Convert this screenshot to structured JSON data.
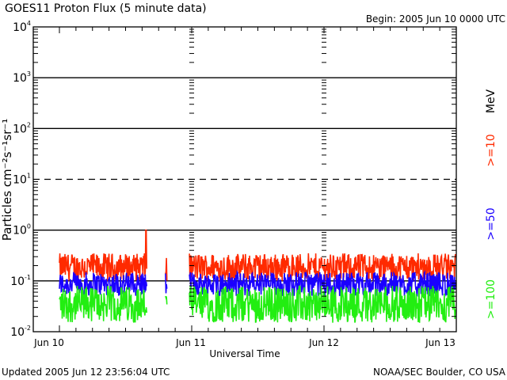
{
  "chart_data": {
    "type": "line",
    "title": "GOES11 Proton Flux (5 minute data)",
    "subtitle": "Begin: 2005 Jun 10 0000 UTC",
    "xlabel": "Universal Time",
    "ylabel": "Particles cm⁻²s⁻¹sr⁻¹",
    "yscale": "log",
    "ylim": [
      0.01,
      10000
    ],
    "xlim_days": [
      0,
      3
    ],
    "x_ticks": [
      "Jun 10",
      "Jun 11",
      "Jun 12",
      "Jun 13"
    ],
    "y_ticks": [
      {
        "value": 10000,
        "base": "10",
        "exp": "4"
      },
      {
        "value": 1000,
        "base": "10",
        "exp": "3"
      },
      {
        "value": 100,
        "base": "10",
        "exp": "2"
      },
      {
        "value": 10,
        "base": "10",
        "exp": "1"
      },
      {
        "value": 1,
        "base": "10",
        "exp": "0"
      },
      {
        "value": 0.1,
        "base": "10",
        "exp": "-1"
      },
      {
        "value": 0.01,
        "base": "10",
        "exp": "-2"
      }
    ],
    "reference_lines": [
      {
        "value": 1000,
        "style": "solid"
      },
      {
        "value": 100,
        "style": "solid"
      },
      {
        "value": 10,
        "style": "dashed"
      },
      {
        "value": 1,
        "style": "solid"
      },
      {
        "value": 0.1,
        "style": "solid"
      }
    ],
    "data_gap_days": [
      0.66,
      0.98
    ],
    "series": [
      {
        "name": ">=10",
        "color": "#ff2a00",
        "typical_range": [
          0.1,
          0.35
        ],
        "peak": 1.0
      },
      {
        "name": ">=50",
        "color": "#1a00ff",
        "typical_range": [
          0.05,
          0.15
        ],
        "peak": 0.25
      },
      {
        "name": ">=100",
        "color": "#22ee11",
        "typical_range": [
          0.015,
          0.08
        ],
        "peak": 0.12
      }
    ],
    "legend": {
      "unit": "MeV",
      "placement": "right"
    },
    "footer_left": "Updated 2005 Jun 12 23:56:04 UTC",
    "footer_right": "NOAA/SEC Boulder, CO USA"
  }
}
